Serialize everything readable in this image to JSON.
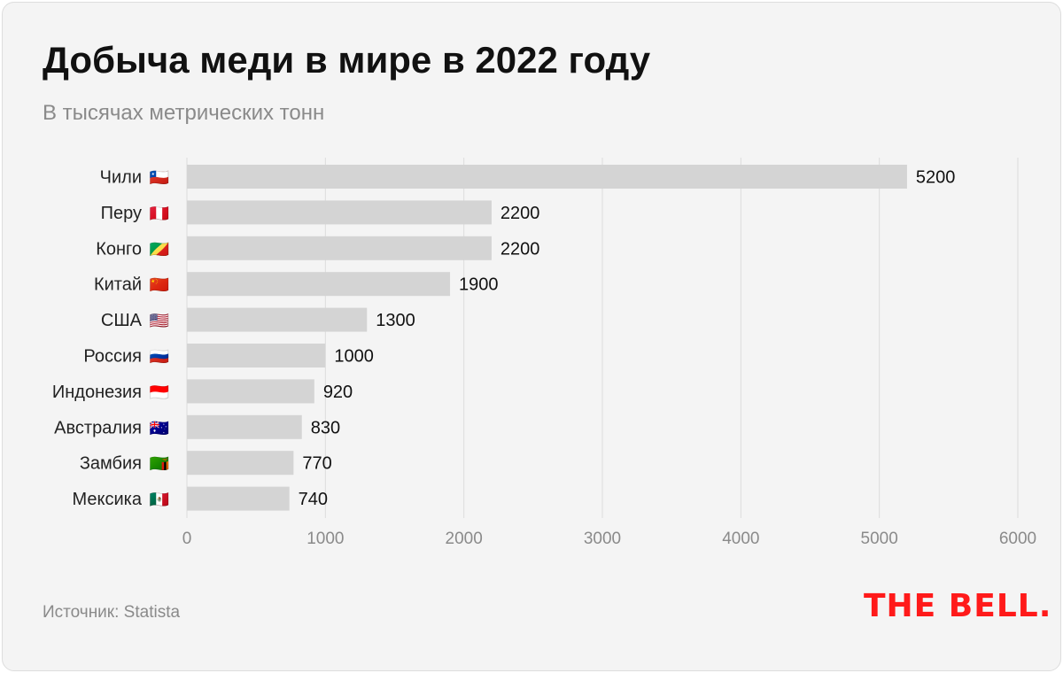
{
  "title": "Добыча меди в мире в 2022 году",
  "subtitle": "В тысячах метрических тонн",
  "source": "Источник: Statista",
  "logo": "THE BELL.",
  "colors": {
    "bar": "#d4d4d4",
    "grid": "#dcdcdc",
    "logo": "#ff1a1a"
  },
  "chart_data": {
    "type": "bar",
    "orientation": "horizontal",
    "title": "Добыча меди в мире в 2022 году",
    "categories": [
      "Чили",
      "Перу",
      "Конго",
      "Китай",
      "США",
      "Россия",
      "Индонезия",
      "Австралия",
      "Замбия",
      "Мексика"
    ],
    "flags": [
      "🇨🇱",
      "🇵🇪",
      "🇨🇬",
      "🇨🇳",
      "🇺🇸",
      "🇷🇺",
      "🇮🇩",
      "🇦🇺",
      "🇿🇲",
      "🇲🇽"
    ],
    "values": [
      5200,
      2200,
      2200,
      1900,
      1300,
      1000,
      920,
      830,
      770,
      740
    ],
    "xlim": [
      0,
      6000
    ],
    "xticks": [
      0,
      1000,
      2000,
      3000,
      4000,
      5000,
      6000
    ],
    "grid": true,
    "xlabel": "",
    "ylabel": ""
  }
}
